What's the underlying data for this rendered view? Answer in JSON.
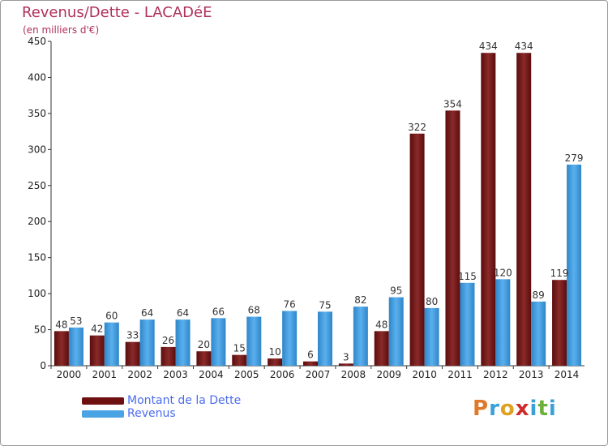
{
  "header": {
    "title": "Revenus/Dette - LACADéE",
    "subtitle": "(en milliers d'€)"
  },
  "colors": {
    "dette": "#7a1515",
    "revenus": "#4aa3e3",
    "title": "#b0305a",
    "legend_text": "#4a6cf0"
  },
  "legend": {
    "items": [
      {
        "label": "Montant de la Dette",
        "color": "#6e1010"
      },
      {
        "label": "Revenus",
        "color": "#4aa3e3"
      }
    ],
    "placement": "bottom-left"
  },
  "logo": {
    "text": "Proxiti",
    "letter_colors": [
      "#e07a2a",
      "#3aa0d8",
      "#e0a020",
      "#d02a2a",
      "#3aa0d8",
      "#6ab03a",
      "#3aa0d8"
    ]
  },
  "chart_data": {
    "type": "bar",
    "categories": [
      "2000",
      "2001",
      "2002",
      "2003",
      "2004",
      "2005",
      "2006",
      "2007",
      "2008",
      "2009",
      "2010",
      "2011",
      "2012",
      "2013",
      "2014"
    ],
    "series": [
      {
        "name": "Montant de la Dette",
        "values": [
          48,
          42,
          33,
          26,
          20,
          15,
          10,
          6,
          3,
          48,
          322,
          354,
          434,
          434,
          119
        ]
      },
      {
        "name": "Revenus",
        "values": [
          53,
          60,
          64,
          64,
          66,
          68,
          76,
          75,
          82,
          95,
          80,
          115,
          120,
          89,
          279
        ]
      }
    ],
    "title": "Revenus/Dette - LACADéE",
    "subtitle": "(en milliers d'€)",
    "ylim": [
      0,
      450
    ],
    "yticks": [
      0,
      50,
      100,
      150,
      200,
      250,
      300,
      350,
      400,
      450
    ],
    "grid": false,
    "legend": "bottom-left"
  }
}
